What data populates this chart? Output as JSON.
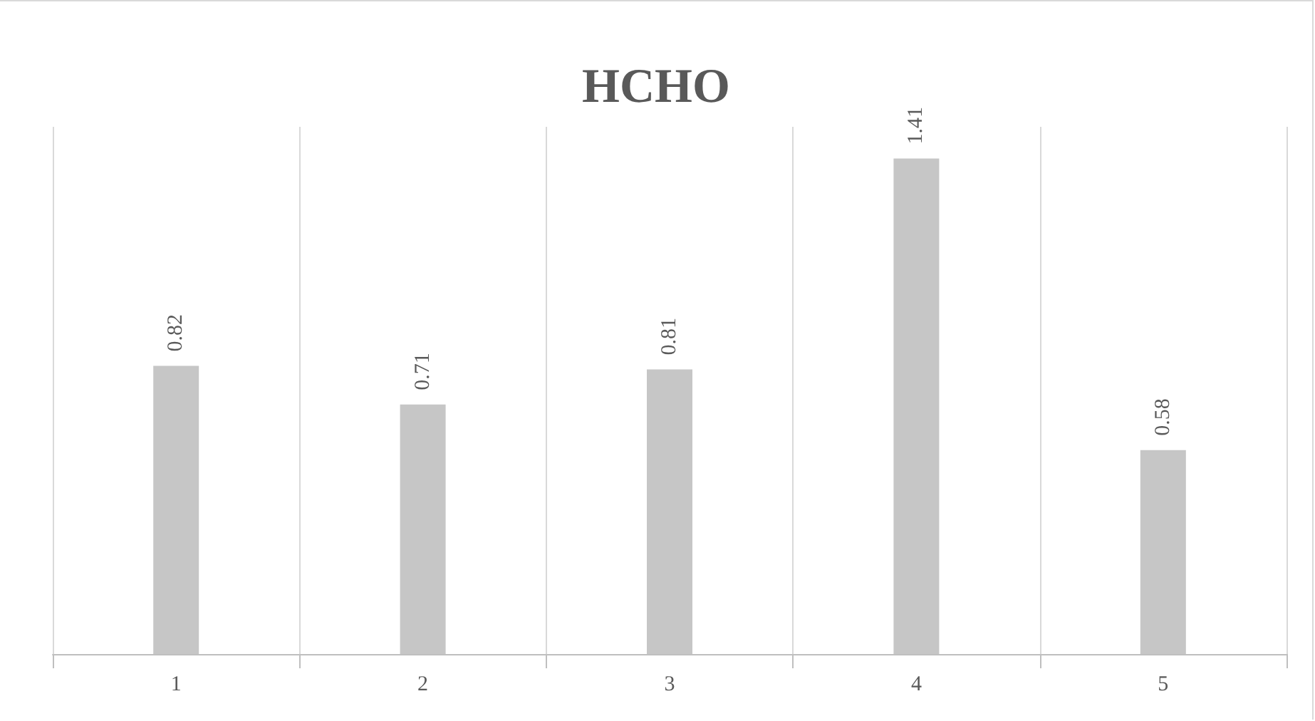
{
  "chart_data": {
    "type": "bar",
    "title": "HCHO",
    "categories": [
      "1",
      "2",
      "3",
      "4",
      "5"
    ],
    "values": [
      0.82,
      0.71,
      0.81,
      1.41,
      0.58
    ],
    "color": "#c6c6c6",
    "data_labels": true,
    "grid": "x"
  }
}
